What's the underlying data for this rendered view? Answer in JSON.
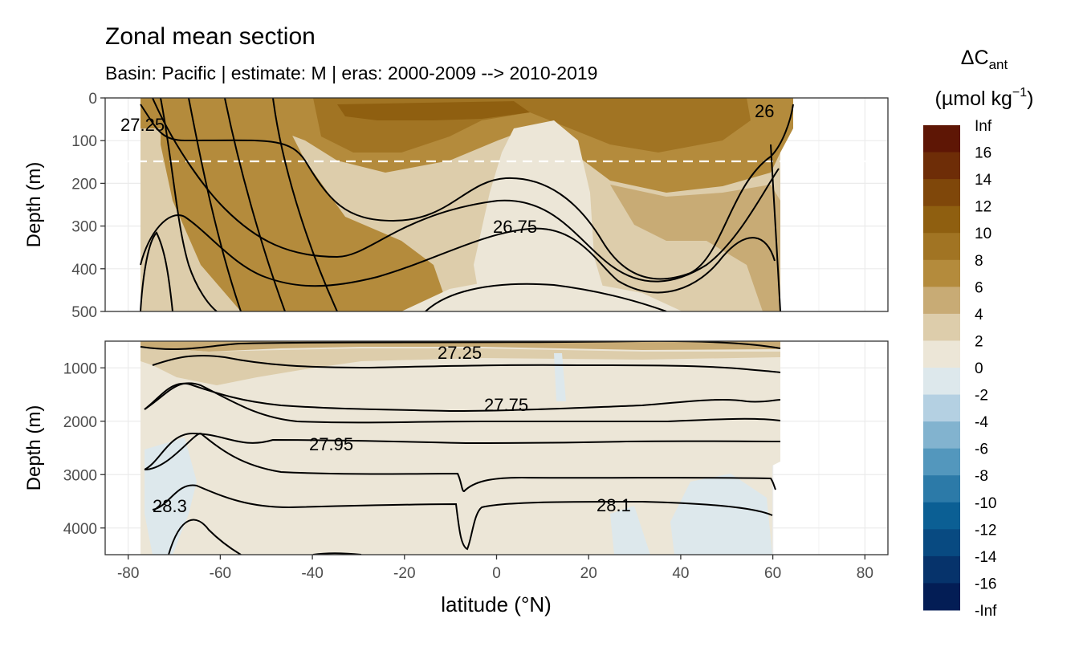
{
  "title": "Zonal mean section",
  "subtitle": "Basin: Pacific | estimate: M  | eras: 2000-2009 --> 2010-2019",
  "chart_data": [
    {
      "type": "heatmap",
      "panel": "upper",
      "ylabel": "Depth (m)",
      "xlim": [
        -85,
        85
      ],
      "ylim": [
        500,
        0
      ],
      "y_ticks": [
        "0",
        "100",
        "200",
        "300",
        "400",
        "500"
      ],
      "reference_line_depth": 150,
      "contour_labels": [
        {
          "text": "27.25",
          "lat": -75,
          "depth": 60
        },
        {
          "text": "26",
          "lat": 58,
          "depth": 35
        },
        {
          "text": "26.75",
          "lat": 6,
          "depth": 305
        }
      ]
    },
    {
      "type": "heatmap",
      "panel": "lower",
      "ylabel": "Depth (m)",
      "xlabel": "latitude (°N)",
      "xlim": [
        -85,
        85
      ],
      "ylim": [
        4500,
        500
      ],
      "y_ticks": [
        "1000",
        "2000",
        "3000",
        "4000"
      ],
      "x_ticks": [
        "-80",
        "-60",
        "-40",
        "-20",
        "0",
        "20",
        "40",
        "60",
        "80"
      ],
      "contour_labels": [
        {
          "text": "27.25",
          "lat": -7,
          "depth": 1200
        },
        {
          "text": "27.75",
          "lat": 3,
          "depth": 1700
        },
        {
          "text": "27.95",
          "lat": -35,
          "depth": 2400
        },
        {
          "text": "28.3",
          "lat": -70,
          "depth": 3550
        },
        {
          "text": "28.1",
          "lat": 26,
          "depth": 3550
        }
      ]
    }
  ],
  "legend": {
    "title_main": "ΔC",
    "title_sub": "ant",
    "units_main": "(µmol kg",
    "units_sup": "−1",
    "units_close": ")",
    "labels": [
      "Inf",
      "16",
      "14",
      "12",
      "10",
      "8",
      "6",
      "4",
      "2",
      "0",
      "-2",
      "-4",
      "-6",
      "-8",
      "-10",
      "-12",
      "-14",
      "-16",
      "-Inf"
    ],
    "colors": [
      "#5e1605",
      "#6e2d07",
      "#7f470a",
      "#8f5f10",
      "#a17423",
      "#b48b3c",
      "#c8ab75",
      "#ddcdab",
      "#ece6d7",
      "#dde8ec",
      "#b4d0e2",
      "#82b3cf",
      "#5397bd",
      "#2c7aa8",
      "#0b5f94",
      "#084a81",
      "#06336b",
      "#031d55"
    ]
  }
}
